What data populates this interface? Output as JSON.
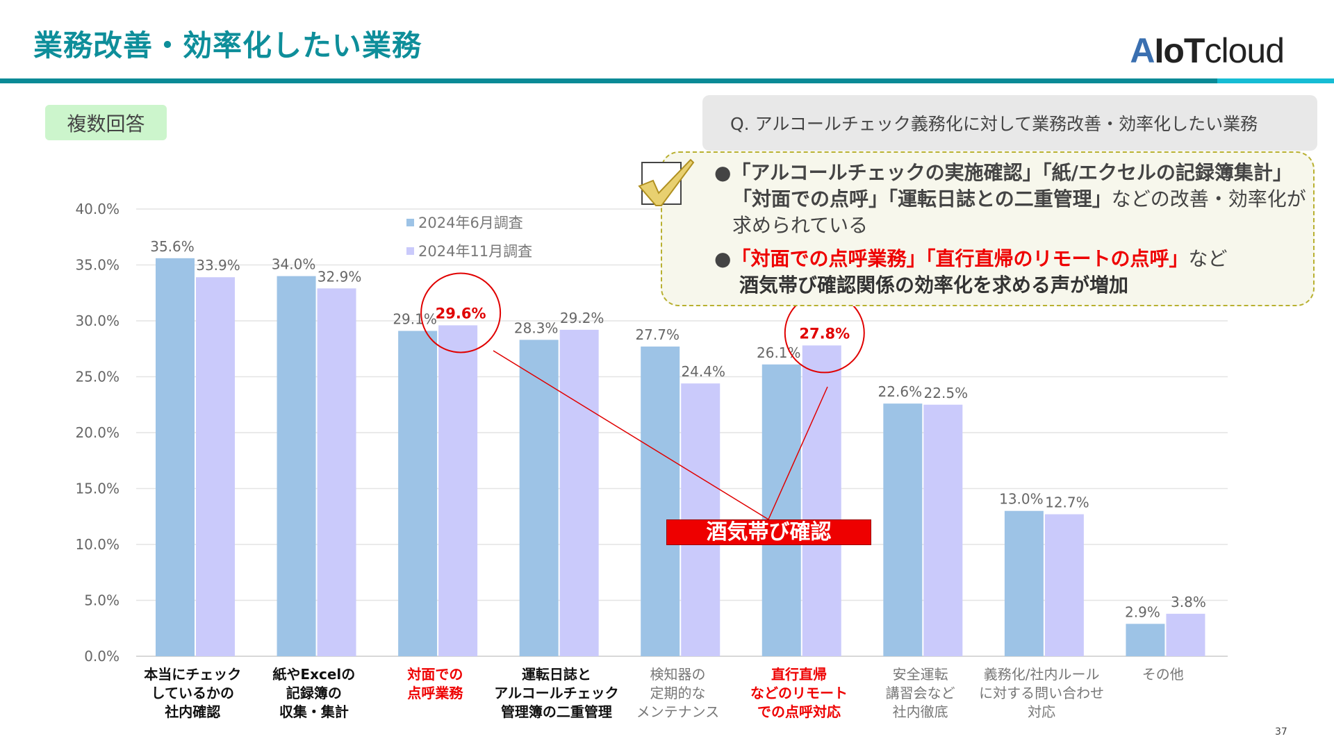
{
  "header": {
    "title": "業務改善・効率化したい業務",
    "logo": "AIoTcloud",
    "page_number": "37"
  },
  "badge": "複数回答",
  "question": "Q. アルコールチェック義務化に対して業務改善・効率化したい業務",
  "callout": {
    "line1": "●「アルコールチェックの実施確認」「紙/エクセルの記録簿集計」",
    "line2_bold": "「対面での点呼」「運転日誌との二重管理」",
    "line2_rest": "などの改善・効率化が",
    "line3": "求められている",
    "line4_bullet": "●",
    "line4_red": "「対面での点呼業務」「直行直帰のリモートの点呼」",
    "line4_rest": "など",
    "line5": "酒気帯び確認関係の効率化を求める声が増加"
  },
  "annotation": "酒気帯び確認",
  "colors": {
    "june": "#9DC3E6",
    "november": "#CACAFB",
    "highlight": "#E00000",
    "title": "#0E8E9A"
  },
  "chart_data": {
    "type": "bar",
    "ylim": [
      0,
      40
    ],
    "yticks": [
      "0.0%",
      "5.0%",
      "10.0%",
      "15.0%",
      "20.0%",
      "25.0%",
      "30.0%",
      "35.0%",
      "40.0%"
    ],
    "grid": true,
    "legend_position": "top-center",
    "categories": [
      {
        "label": [
          "本当にチェック",
          "しているかの",
          "社内確認"
        ],
        "style": "bold"
      },
      {
        "label": [
          "紙やExcelの",
          "記録簿の",
          "収集・集計"
        ],
        "style": "bold"
      },
      {
        "label": [
          "対面での",
          "点呼業務"
        ],
        "style": "red"
      },
      {
        "label": [
          "運転日誌と",
          "アルコールチェック",
          "管理簿の二重管理"
        ],
        "style": "bold"
      },
      {
        "label": [
          "検知器の",
          "定期的な",
          "メンテナンス"
        ],
        "style": "normal"
      },
      {
        "label": [
          "直行直帰",
          "などのリモート",
          "での点呼対応"
        ],
        "style": "red"
      },
      {
        "label": [
          "安全運転",
          "講習会など",
          "社内徹底"
        ],
        "style": "normal"
      },
      {
        "label": [
          "義務化/社内ルール",
          "に対する問い合わせ",
          "対応"
        ],
        "style": "normal"
      },
      {
        "label": [
          "その他"
        ],
        "style": "normal"
      }
    ],
    "series": [
      {
        "name": "2024年6月調査",
        "values": [
          35.6,
          34.0,
          29.1,
          28.3,
          27.7,
          26.1,
          22.6,
          13.0,
          2.9
        ]
      },
      {
        "name": "2024年11月調査",
        "values": [
          33.9,
          32.9,
          29.6,
          29.2,
          24.4,
          27.8,
          22.5,
          12.7,
          3.8
        ]
      }
    ],
    "highlighted": [
      {
        "series": 1,
        "index": 2
      },
      {
        "series": 1,
        "index": 5
      }
    ]
  }
}
